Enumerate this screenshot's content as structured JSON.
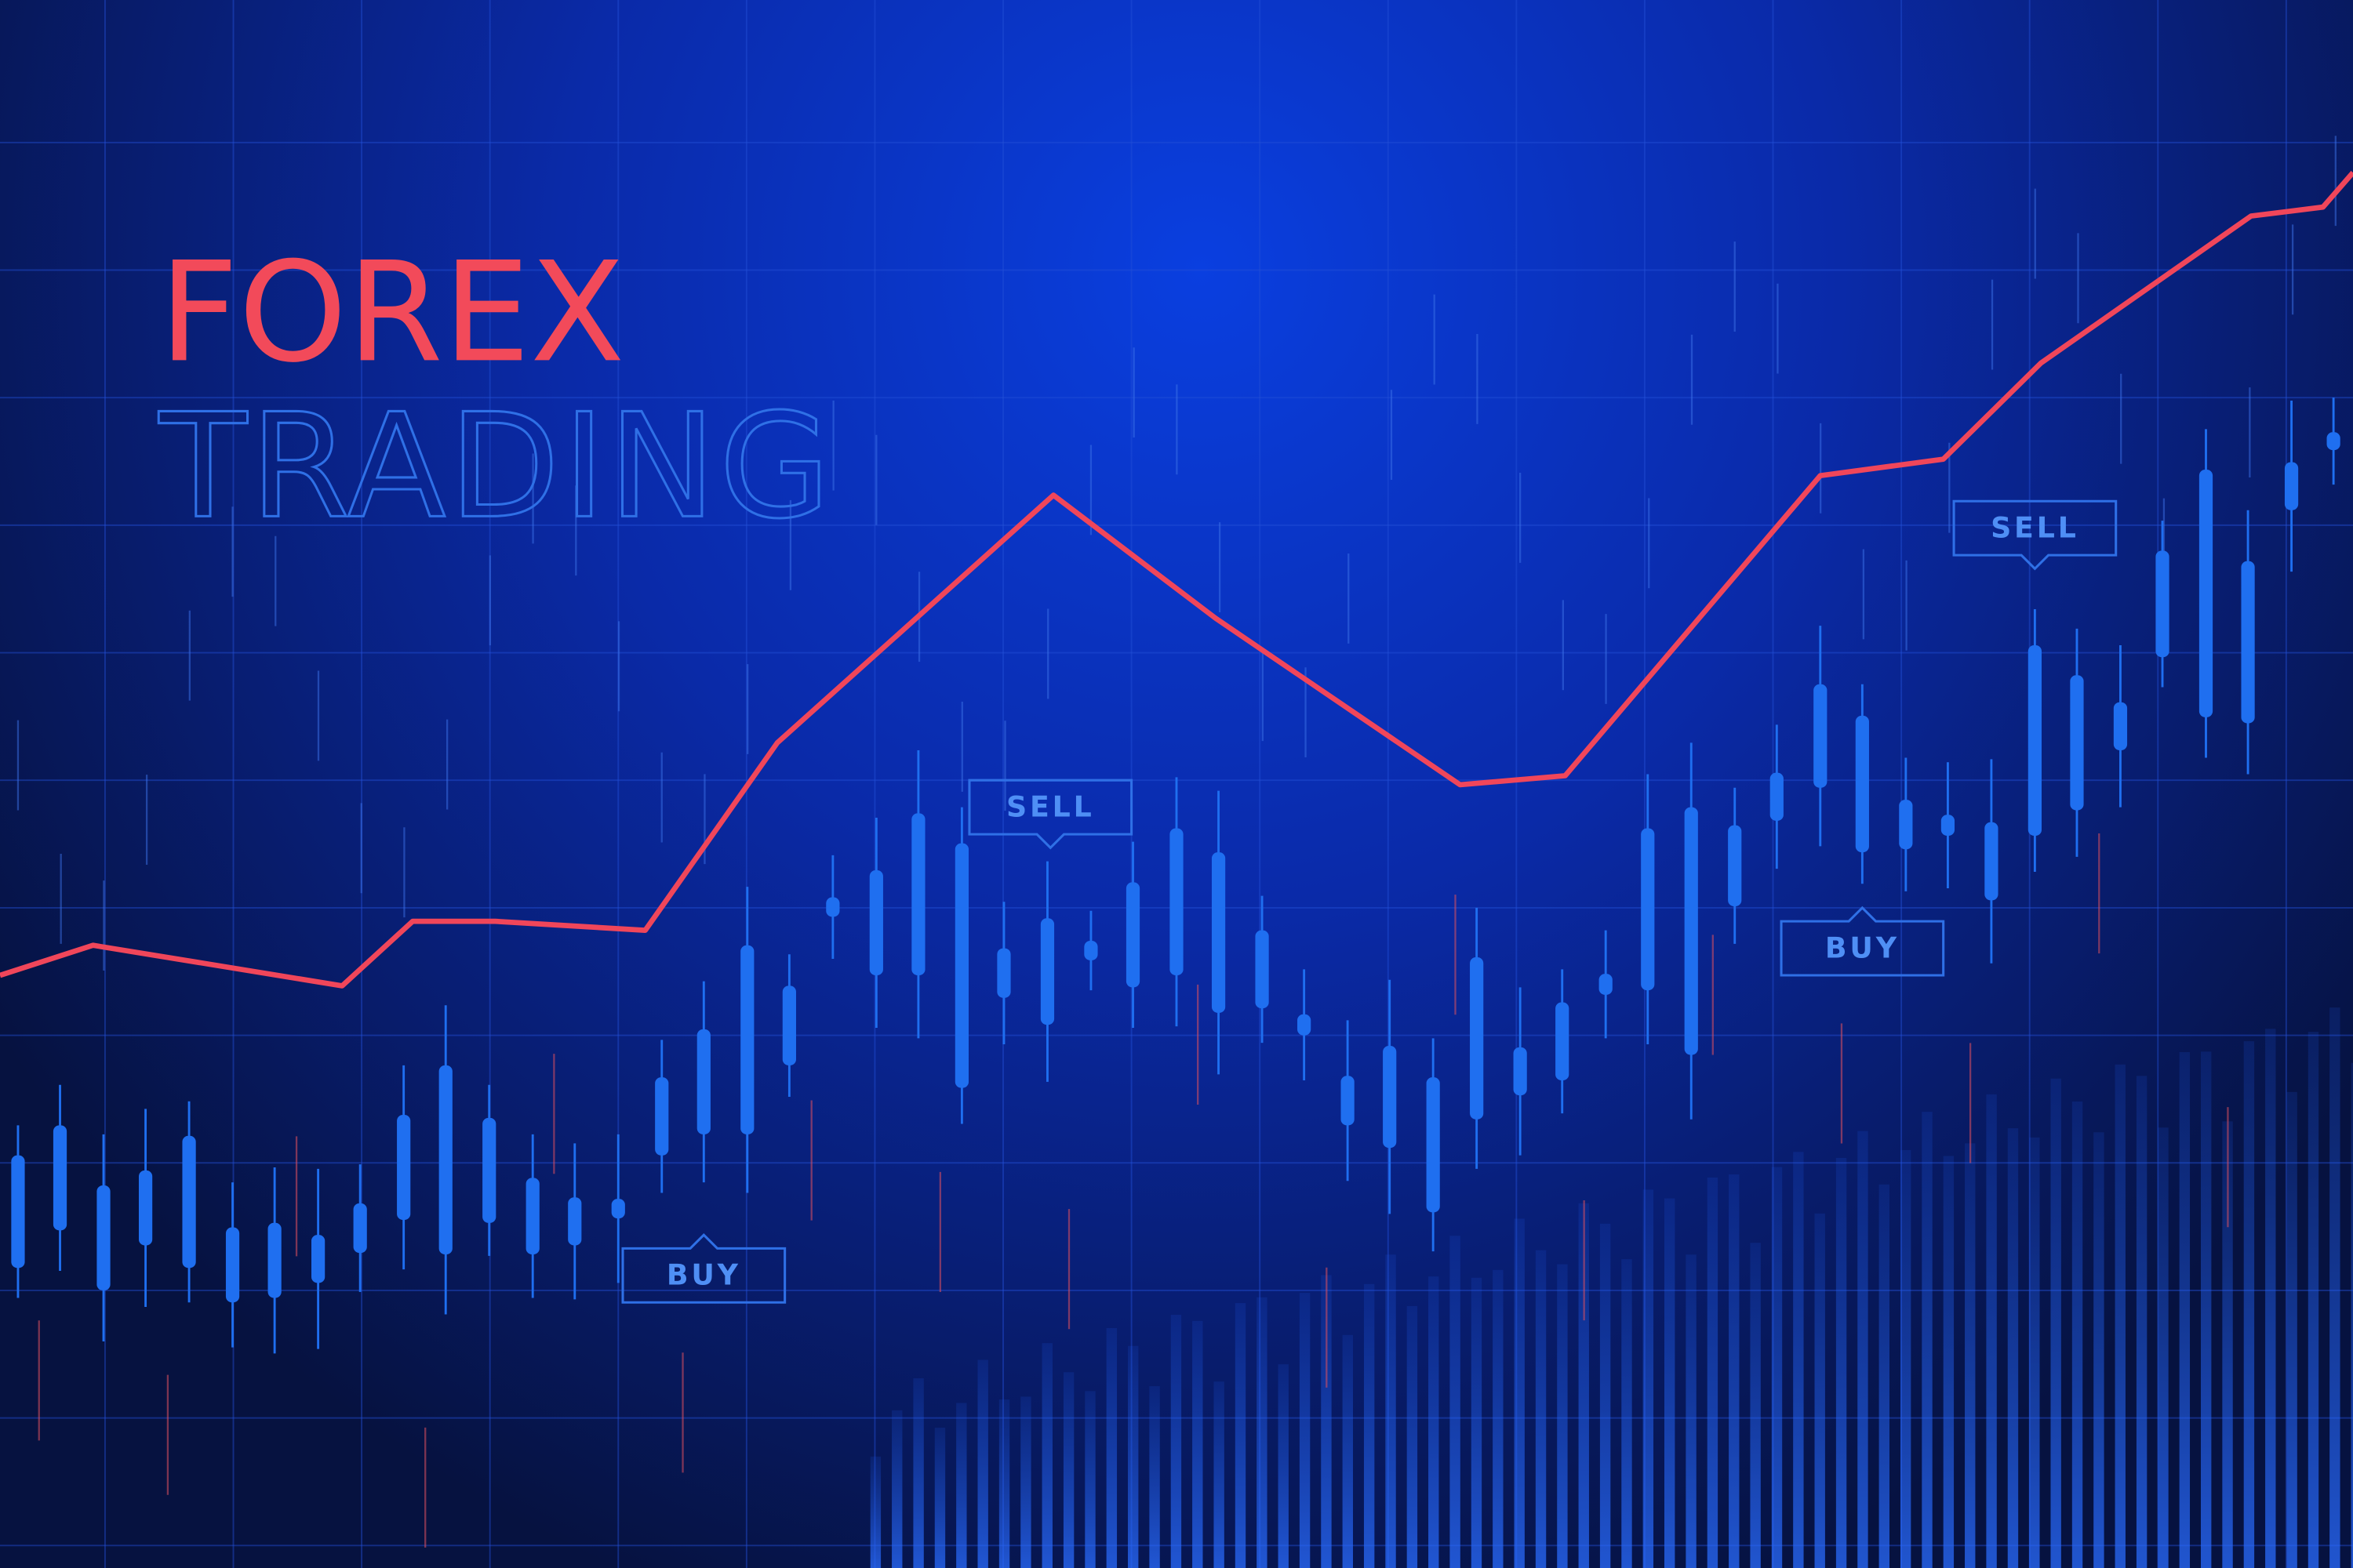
{
  "header": {
    "title": "FOREX",
    "subtitle": "TRADING"
  },
  "tags": [
    {
      "label": "SELL"
    },
    {
      "label": "BUY"
    },
    {
      "label": "BUY"
    },
    {
      "label": "SELL"
    }
  ]
}
